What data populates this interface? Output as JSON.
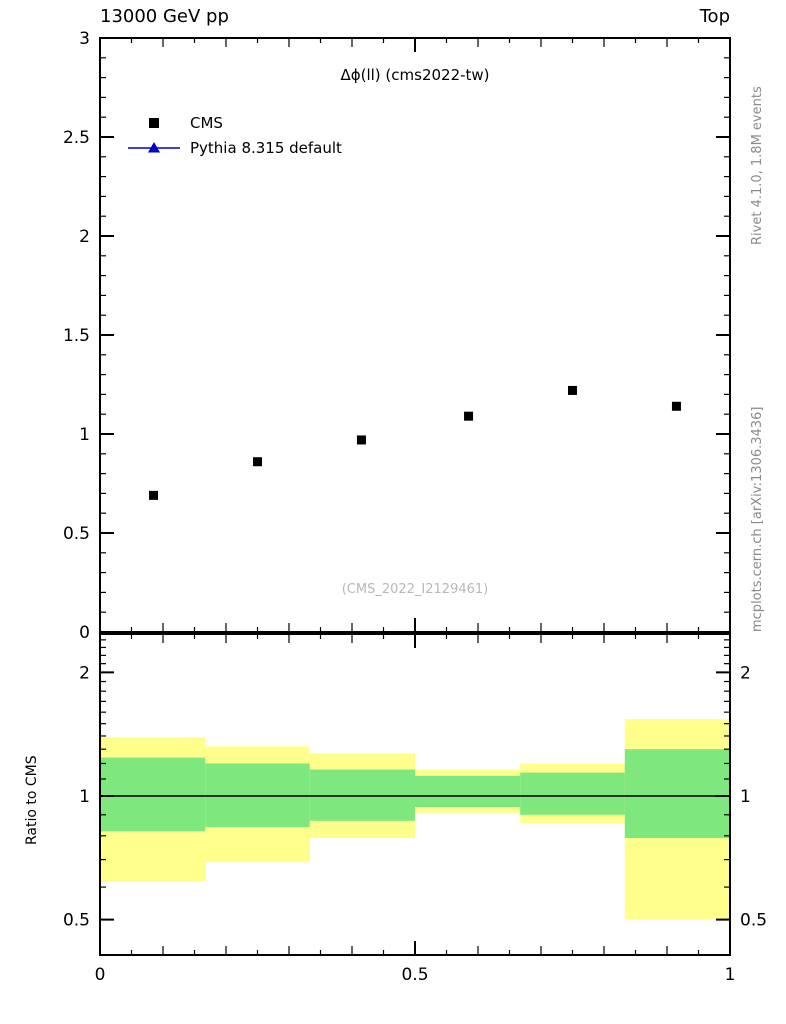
{
  "header": {
    "left": "13000 GeV pp",
    "right": "Top"
  },
  "plot": {
    "title": "Δϕ(ll) (cms2022-tw)",
    "watermark": "(CMS_2022_I2129461)",
    "side_text_top": "Rivet 4.1.0, 1.8M events",
    "side_text_bottom": "mcplots.cern.ch [arXiv:1306.3436]"
  },
  "legend": {
    "entries": [
      {
        "label": "CMS",
        "marker": "square",
        "color": "#000000"
      },
      {
        "label": "Pythia 8.315 default",
        "marker": "triangle-line",
        "color": "#0000cc"
      }
    ]
  },
  "chart_data": [
    {
      "type": "scatter",
      "panel": "main",
      "title": "Δϕ(ll) (cms2022-tw)",
      "xlabel": "",
      "ylabel": "",
      "xlim": [
        0,
        1
      ],
      "ylim": [
        0,
        3
      ],
      "xticks": [
        0,
        0.5,
        1
      ],
      "xtick_labels": [
        "0",
        "0.5",
        "1"
      ],
      "yticks": [
        0,
        0.5,
        1,
        1.5,
        2,
        2.5,
        3
      ],
      "ytick_labels": [
        "0",
        "0.5",
        "1",
        "1.5",
        "2",
        "2.5",
        "3"
      ],
      "grid": false,
      "legend_position": "upper left",
      "series": [
        {
          "name": "CMS",
          "marker": "square",
          "color": "#000000",
          "x": [
            0.085,
            0.25,
            0.415,
            0.585,
            0.75,
            0.915
          ],
          "y": [
            0.69,
            0.86,
            0.97,
            1.09,
            1.22,
            1.14
          ]
        },
        {
          "name": "Pythia 8.315 default",
          "marker": "triangle",
          "color": "#0000cc",
          "x": [],
          "y": []
        }
      ]
    },
    {
      "type": "band",
      "panel": "ratio",
      "ylabel": "Ratio to CMS",
      "yscale": "log",
      "xlim": [
        0,
        1
      ],
      "ylim": [
        0.41,
        2.48
      ],
      "yticks": [
        0.5,
        1,
        2
      ],
      "ytick_labels": [
        "0.5",
        "1",
        "2"
      ],
      "bin_edges": [
        0,
        0.167,
        0.333,
        0.5,
        0.667,
        0.833,
        1.0
      ],
      "bands": {
        "yellow": {
          "color": "#ffff8c",
          "ranges": [
            [
              0.62,
              1.39
            ],
            [
              0.69,
              1.32
            ],
            [
              0.79,
              1.27
            ],
            [
              0.91,
              1.16
            ],
            [
              0.86,
              1.2
            ],
            [
              0.5,
              1.54
            ]
          ]
        },
        "green": {
          "color": "#7ee87e",
          "ranges": [
            [
              0.82,
              1.24
            ],
            [
              0.84,
              1.2
            ],
            [
              0.87,
              1.16
            ],
            [
              0.94,
              1.12
            ],
            [
              0.9,
              1.14
            ],
            [
              0.79,
              1.3
            ]
          ]
        }
      },
      "reference_line": 1
    }
  ]
}
